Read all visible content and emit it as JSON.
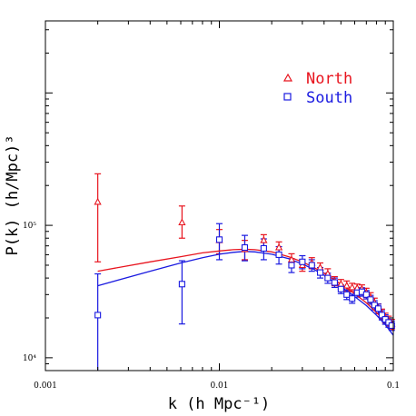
{
  "chart_data": {
    "type": "scatter",
    "xlabel": "k (h Mpc⁻¹)",
    "ylabel": "P(k) (h/Mpc)³",
    "xscale": "log",
    "yscale": "log",
    "xlim": [
      0.001,
      0.1
    ],
    "ylim": [
      8000,
      3500000
    ],
    "x_ticks": [
      {
        "value": 0.001,
        "label": "0.001"
      },
      {
        "value": 0.01,
        "label": "0.01"
      },
      {
        "value": 0.1,
        "label": "0.1"
      }
    ],
    "y_ticks": [
      {
        "value": 10000,
        "label": "10⁴"
      },
      {
        "value": 100000,
        "label": "10⁵"
      }
    ],
    "grid": false,
    "legend_position": "top-right",
    "series": [
      {
        "name": "North",
        "color": "#e8141e",
        "marker": "triangle",
        "points": [
          {
            "x": 0.002,
            "y": 150000,
            "lo": 53000,
            "hi": 245000
          },
          {
            "x": 0.0061,
            "y": 105000,
            "lo": 80000,
            "hi": 140000
          },
          {
            "x": 0.01,
            "y": 77000,
            "lo": 61000,
            "hi": 93000
          },
          {
            "x": 0.014,
            "y": 66000,
            "lo": 55000,
            "hi": 77000
          },
          {
            "x": 0.018,
            "y": 77000,
            "lo": 69000,
            "hi": 85000
          },
          {
            "x": 0.022,
            "y": 68000,
            "lo": 61000,
            "hi": 75000
          },
          {
            "x": 0.026,
            "y": 55000,
            "lo": 49000,
            "hi": 61000
          },
          {
            "x": 0.03,
            "y": 50000,
            "lo": 45000,
            "hi": 55000
          },
          {
            "x": 0.034,
            "y": 52000,
            "lo": 47000,
            "hi": 57000
          },
          {
            "x": 0.038,
            "y": 48000,
            "lo": 44000,
            "hi": 52000
          },
          {
            "x": 0.042,
            "y": 43000,
            "lo": 39000,
            "hi": 47000
          },
          {
            "x": 0.046,
            "y": 38000,
            "lo": 35000,
            "hi": 41000
          },
          {
            "x": 0.05,
            "y": 36000,
            "lo": 33000,
            "hi": 39000
          },
          {
            "x": 0.054,
            "y": 35000,
            "lo": 32000,
            "hi": 38000
          },
          {
            "x": 0.058,
            "y": 34000,
            "lo": 31500,
            "hi": 36500
          },
          {
            "x": 0.062,
            "y": 33500,
            "lo": 31000,
            "hi": 36000
          },
          {
            "x": 0.066,
            "y": 33000,
            "lo": 30500,
            "hi": 35500
          },
          {
            "x": 0.07,
            "y": 31000,
            "lo": 28500,
            "hi": 33500
          },
          {
            "x": 0.074,
            "y": 28500,
            "lo": 26000,
            "hi": 31000
          },
          {
            "x": 0.078,
            "y": 26000,
            "lo": 23800,
            "hi": 28200
          },
          {
            "x": 0.082,
            "y": 23500,
            "lo": 21500,
            "hi": 25500
          },
          {
            "x": 0.086,
            "y": 21500,
            "lo": 19700,
            "hi": 23300
          },
          {
            "x": 0.09,
            "y": 20000,
            "lo": 18300,
            "hi": 21700
          },
          {
            "x": 0.094,
            "y": 19000,
            "lo": 17400,
            "hi": 20600
          },
          {
            "x": 0.098,
            "y": 18000,
            "lo": 16500,
            "hi": 19500
          }
        ],
        "model": {
          "x": [
            0.002,
            0.004,
            0.006,
            0.008,
            0.01,
            0.012,
            0.014,
            0.016,
            0.02,
            0.025,
            0.03,
            0.035,
            0.04,
            0.05,
            0.06,
            0.07,
            0.08,
            0.09,
            0.1
          ],
          "y": [
            45000,
            53000,
            58000,
            62000,
            64000,
            65500,
            66000,
            65500,
            63000,
            58000,
            53000,
            48000,
            43500,
            36000,
            30500,
            26000,
            22000,
            18800,
            16000
          ]
        }
      },
      {
        "name": "South",
        "color": "#1a1ae0",
        "marker": "square",
        "points": [
          {
            "x": 0.002,
            "y": 21000,
            "lo": 8000,
            "hi": 43000
          },
          {
            "x": 0.0061,
            "y": 36000,
            "lo": 18000,
            "hi": 54000
          },
          {
            "x": 0.01,
            "y": 78000,
            "lo": 55000,
            "hi": 103000
          },
          {
            "x": 0.014,
            "y": 68000,
            "lo": 54000,
            "hi": 84000
          },
          {
            "x": 0.018,
            "y": 67000,
            "lo": 55000,
            "hi": 79000
          },
          {
            "x": 0.022,
            "y": 60000,
            "lo": 51000,
            "hi": 69000
          },
          {
            "x": 0.026,
            "y": 50000,
            "lo": 44000,
            "hi": 56000
          },
          {
            "x": 0.03,
            "y": 53000,
            "lo": 47000,
            "hi": 59000
          },
          {
            "x": 0.034,
            "y": 50000,
            "lo": 45000,
            "hi": 55000
          },
          {
            "x": 0.038,
            "y": 44000,
            "lo": 40000,
            "hi": 48000
          },
          {
            "x": 0.042,
            "y": 40000,
            "lo": 36500,
            "hi": 43500
          },
          {
            "x": 0.046,
            "y": 37000,
            "lo": 34000,
            "hi": 40000
          },
          {
            "x": 0.05,
            "y": 33000,
            "lo": 30500,
            "hi": 35500
          },
          {
            "x": 0.054,
            "y": 30000,
            "lo": 27500,
            "hi": 32500
          },
          {
            "x": 0.058,
            "y": 28000,
            "lo": 25800,
            "hi": 30200
          },
          {
            "x": 0.062,
            "y": 31000,
            "lo": 28700,
            "hi": 33300
          },
          {
            "x": 0.066,
            "y": 31500,
            "lo": 29200,
            "hi": 33800
          },
          {
            "x": 0.07,
            "y": 30000,
            "lo": 27800,
            "hi": 32200
          },
          {
            "x": 0.074,
            "y": 27500,
            "lo": 25400,
            "hi": 29600
          },
          {
            "x": 0.078,
            "y": 25000,
            "lo": 23000,
            "hi": 27000
          },
          {
            "x": 0.082,
            "y": 23500,
            "lo": 21600,
            "hi": 25400
          },
          {
            "x": 0.086,
            "y": 21000,
            "lo": 19300,
            "hi": 22700
          },
          {
            "x": 0.09,
            "y": 19500,
            "lo": 17900,
            "hi": 21100
          },
          {
            "x": 0.094,
            "y": 18500,
            "lo": 17000,
            "hi": 20000
          },
          {
            "x": 0.098,
            "y": 17500,
            "lo": 16100,
            "hi": 18900
          }
        ],
        "model": {
          "x": [
            0.002,
            0.004,
            0.006,
            0.008,
            0.01,
            0.012,
            0.014,
            0.016,
            0.02,
            0.025,
            0.03,
            0.035,
            0.04,
            0.05,
            0.06,
            0.07,
            0.08,
            0.09,
            0.1
          ],
          "y": [
            35000,
            45000,
            52000,
            57000,
            60500,
            62500,
            63500,
            63000,
            60500,
            56000,
            51000,
            46500,
            42000,
            34500,
            29000,
            24800,
            21000,
            17800,
            14800
          ]
        }
      }
    ]
  }
}
